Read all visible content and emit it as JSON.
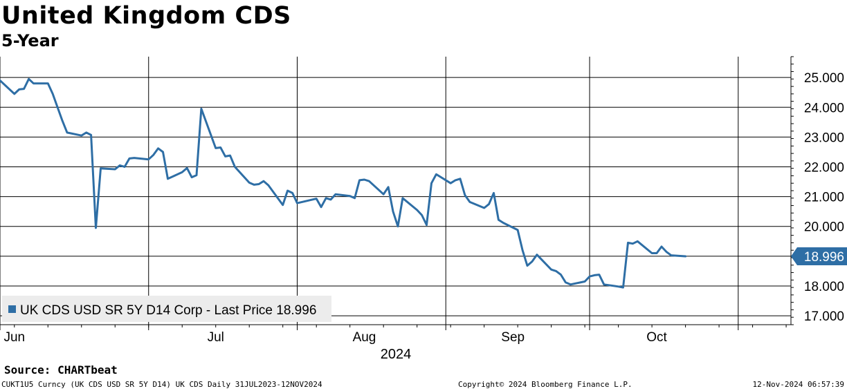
{
  "header": {
    "title": "United Kingdom CDS",
    "subtitle": "5-Year"
  },
  "footer": {
    "source": "Source: CHARTbeat",
    "security": "CUKT1U5 Curncy (UK CDS USD SR 5Y D14) UK CDS  Daily 31JUL2023-12NOV2024",
    "copyright": "Copyright© 2024 Bloomberg Finance L.P.",
    "timestamp": "12-Nov-2024 06:57:39"
  },
  "colors": {
    "series": "#2e6ea5",
    "last_price_box": "#2e6ea5",
    "legend_bg": "#ececec",
    "grid": "#000000"
  },
  "chart_data": {
    "type": "line",
    "title": "United Kingdom CDS",
    "subtitle": "5-Year",
    "x_label": "2024",
    "x_range": [
      "2024-05-31",
      "2024-11-12"
    ],
    "ylim": [
      16.7,
      25.7
    ],
    "y_ticks": [
      17,
      18,
      19,
      20,
      21,
      22,
      23,
      24,
      25
    ],
    "y_tick_labels": [
      "17.000",
      "18.000",
      "19.000",
      "20.000",
      "21.000",
      "22.000",
      "23.000",
      "24.000",
      "25.000"
    ],
    "y_axis_position": "right",
    "x_tick_labels": [
      "Jun",
      "Jul",
      "Aug",
      "Sep",
      "Oct"
    ],
    "x_tick_dates": [
      "2024-06-01",
      "2024-07-01",
      "2024-08-01",
      "2024-09-01",
      "2024-10-01"
    ],
    "x_label_positions": [
      "2024-06-03",
      "2024-07-15",
      "2024-08-15",
      "2024-09-15",
      "2024-10-15"
    ],
    "vertical_gridlines": [
      "2024-05-31",
      "2024-07-01",
      "2024-08-01",
      "2024-09-01",
      "2024-10-01",
      "2024-11-01"
    ],
    "grid": true,
    "legend": {
      "position": "bottom-left",
      "entry": "UK CDS USD SR 5Y D14 Corp - Last Price 18.996"
    },
    "last_price_label": "18.996",
    "series": [
      {
        "name": "UK CDS USD SR 5Y D14 Corp - Last Price",
        "color": "#2e6ea5",
        "points": [
          [
            "2024-05-31",
            24.9
          ],
          [
            "2024-06-03",
            24.45
          ],
          [
            "2024-06-04",
            24.6
          ],
          [
            "2024-06-05",
            24.62
          ],
          [
            "2024-06-06",
            24.95
          ],
          [
            "2024-06-07",
            24.8
          ],
          [
            "2024-06-10",
            24.8
          ],
          [
            "2024-06-11",
            24.45
          ],
          [
            "2024-06-12",
            24.0
          ],
          [
            "2024-06-13",
            23.55
          ],
          [
            "2024-06-14",
            23.15
          ],
          [
            "2024-06-17",
            23.05
          ],
          [
            "2024-06-18",
            23.15
          ],
          [
            "2024-06-19",
            23.07
          ],
          [
            "2024-06-20",
            19.95
          ],
          [
            "2024-06-21",
            21.95
          ],
          [
            "2024-06-24",
            21.92
          ],
          [
            "2024-06-25",
            22.05
          ],
          [
            "2024-06-26",
            22.0
          ],
          [
            "2024-06-27",
            22.28
          ],
          [
            "2024-06-28",
            22.3
          ],
          [
            "2024-07-01",
            22.25
          ],
          [
            "2024-07-02",
            22.4
          ],
          [
            "2024-07-03",
            22.62
          ],
          [
            "2024-07-04",
            22.5
          ],
          [
            "2024-07-05",
            21.6
          ],
          [
            "2024-07-08",
            21.82
          ],
          [
            "2024-07-09",
            21.96
          ],
          [
            "2024-07-10",
            21.65
          ],
          [
            "2024-07-11",
            21.72
          ],
          [
            "2024-07-12",
            23.95
          ],
          [
            "2024-07-15",
            22.63
          ],
          [
            "2024-07-16",
            22.65
          ],
          [
            "2024-07-17",
            22.35
          ],
          [
            "2024-07-18",
            22.38
          ],
          [
            "2024-07-19",
            22.0
          ],
          [
            "2024-07-22",
            21.47
          ],
          [
            "2024-07-23",
            21.4
          ],
          [
            "2024-07-24",
            21.42
          ],
          [
            "2024-07-25",
            21.52
          ],
          [
            "2024-07-26",
            21.38
          ],
          [
            "2024-07-29",
            20.72
          ],
          [
            "2024-07-30",
            21.2
          ],
          [
            "2024-07-31",
            21.12
          ],
          [
            "2024-08-01",
            20.78
          ],
          [
            "2024-08-02",
            20.82
          ],
          [
            "2024-08-05",
            20.93
          ],
          [
            "2024-08-06",
            20.65
          ],
          [
            "2024-08-07",
            20.95
          ],
          [
            "2024-08-08",
            20.9
          ],
          [
            "2024-08-09",
            21.08
          ],
          [
            "2024-08-12",
            21.02
          ],
          [
            "2024-08-13",
            20.95
          ],
          [
            "2024-08-14",
            21.55
          ],
          [
            "2024-08-15",
            21.57
          ],
          [
            "2024-08-16",
            21.52
          ],
          [
            "2024-08-19",
            21.08
          ],
          [
            "2024-08-20",
            21.32
          ],
          [
            "2024-08-21",
            20.5
          ],
          [
            "2024-08-22",
            20.0
          ],
          [
            "2024-08-23",
            20.95
          ],
          [
            "2024-08-26",
            20.55
          ],
          [
            "2024-08-27",
            20.38
          ],
          [
            "2024-08-28",
            20.05
          ],
          [
            "2024-08-29",
            21.45
          ],
          [
            "2024-08-30",
            21.75
          ],
          [
            "2024-09-02",
            21.45
          ],
          [
            "2024-09-03",
            21.55
          ],
          [
            "2024-09-04",
            21.6
          ],
          [
            "2024-09-05",
            21.05
          ],
          [
            "2024-09-06",
            20.82
          ],
          [
            "2024-09-09",
            20.62
          ],
          [
            "2024-09-10",
            20.75
          ],
          [
            "2024-09-11",
            21.12
          ],
          [
            "2024-09-12",
            20.22
          ],
          [
            "2024-09-13",
            20.12
          ],
          [
            "2024-09-16",
            19.88
          ],
          [
            "2024-09-17",
            19.2
          ],
          [
            "2024-09-18",
            18.68
          ],
          [
            "2024-09-19",
            18.82
          ],
          [
            "2024-09-20",
            19.05
          ],
          [
            "2024-09-23",
            18.55
          ],
          [
            "2024-09-24",
            18.5
          ],
          [
            "2024-09-25",
            18.38
          ],
          [
            "2024-09-26",
            18.12
          ],
          [
            "2024-09-27",
            18.05
          ],
          [
            "2024-09-30",
            18.15
          ],
          [
            "2024-10-01",
            18.32
          ],
          [
            "2024-10-02",
            18.36
          ],
          [
            "2024-10-03",
            18.38
          ],
          [
            "2024-10-04",
            18.05
          ],
          [
            "2024-10-07",
            17.98
          ],
          [
            "2024-10-08",
            17.95
          ],
          [
            "2024-10-09",
            19.45
          ],
          [
            "2024-10-10",
            19.42
          ],
          [
            "2024-10-11",
            19.5
          ],
          [
            "2024-10-14",
            19.1
          ],
          [
            "2024-10-15",
            19.1
          ],
          [
            "2024-10-16",
            19.32
          ],
          [
            "2024-10-17",
            19.15
          ],
          [
            "2024-10-18",
            19.03
          ],
          [
            "2024-10-21",
            18.996
          ]
        ]
      }
    ]
  }
}
